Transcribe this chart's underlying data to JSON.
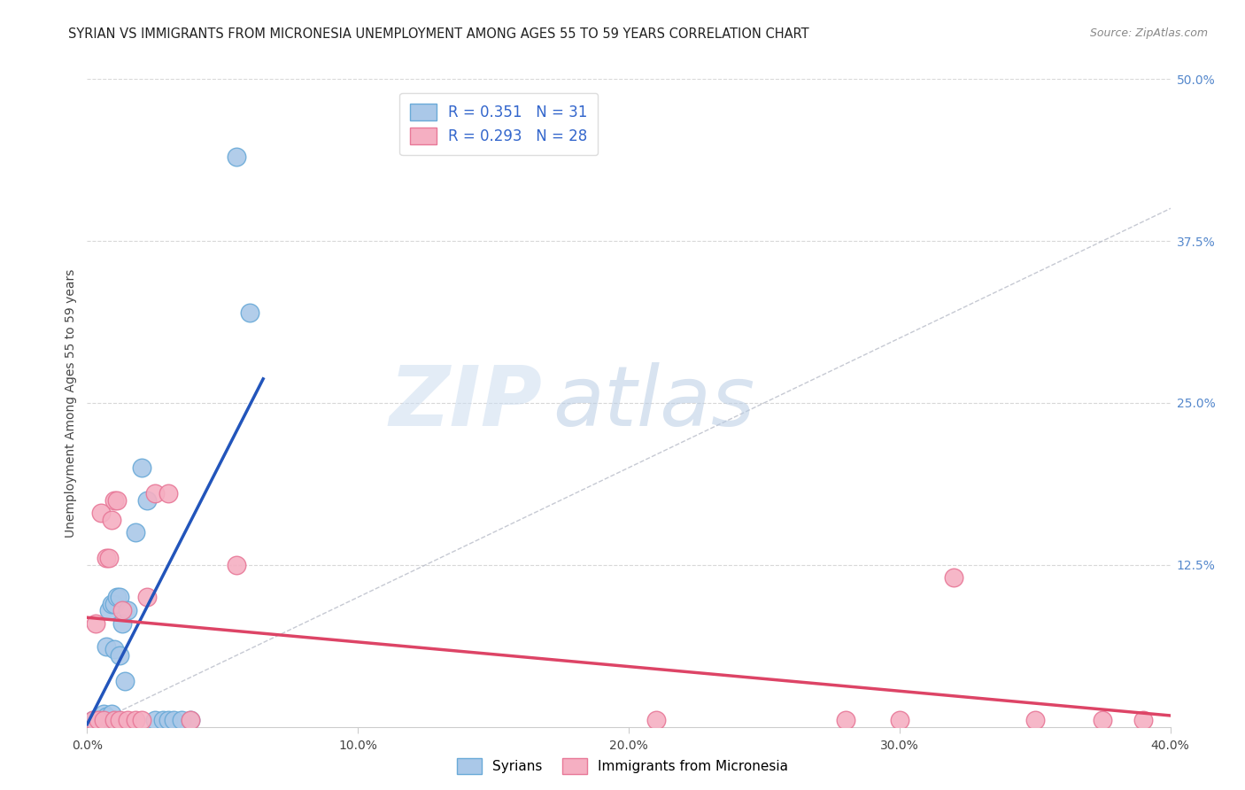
{
  "title": "SYRIAN VS IMMIGRANTS FROM MICRONESIA UNEMPLOYMENT AMONG AGES 55 TO 59 YEARS CORRELATION CHART",
  "source": "Source: ZipAtlas.com",
  "ylabel": "Unemployment Among Ages 55 to 59 years",
  "xlim": [
    0.0,
    0.4
  ],
  "ylim": [
    0.0,
    0.5
  ],
  "xticklabels": [
    "0.0%",
    "",
    "10.0%",
    "",
    "20.0%",
    "",
    "30.0%",
    "",
    "40.0%"
  ],
  "xtick_vals": [
    0.0,
    0.05,
    0.1,
    0.15,
    0.2,
    0.25,
    0.3,
    0.35,
    0.4
  ],
  "yticklabels_right": [
    "12.5%",
    "25.0%",
    "37.5%",
    "50.0%"
  ],
  "ytick_vals_right": [
    0.125,
    0.25,
    0.375,
    0.5
  ],
  "blue_R": 0.351,
  "blue_N": 31,
  "pink_R": 0.293,
  "pink_N": 28,
  "blue_color": "#aac8e8",
  "pink_color": "#f5afc2",
  "blue_edge": "#6aaad8",
  "pink_edge": "#e87898",
  "trend_blue": "#2255bb",
  "trend_pink": "#dd4466",
  "ref_line_color": "#b8bcc8",
  "grid_color": "#d8d8d8",
  "watermark_zip": "ZIP",
  "watermark_atlas": "atlas",
  "background_color": "#ffffff",
  "title_fontsize": 10.5,
  "axis_label_fontsize": 10,
  "tick_fontsize": 10,
  "blue_x": [
    0.002,
    0.003,
    0.004,
    0.004,
    0.005,
    0.006,
    0.006,
    0.007,
    0.007,
    0.008,
    0.009,
    0.009,
    0.01,
    0.01,
    0.011,
    0.012,
    0.012,
    0.013,
    0.014,
    0.015,
    0.018,
    0.02,
    0.022,
    0.025,
    0.028,
    0.03,
    0.032,
    0.035,
    0.038,
    0.055,
    0.06
  ],
  "blue_y": [
    0.005,
    0.005,
    0.005,
    0.005,
    0.005,
    0.005,
    0.01,
    0.008,
    0.062,
    0.09,
    0.01,
    0.095,
    0.06,
    0.095,
    0.1,
    0.055,
    0.1,
    0.08,
    0.035,
    0.09,
    0.15,
    0.2,
    0.175,
    0.005,
    0.005,
    0.005,
    0.005,
    0.005,
    0.005,
    0.44,
    0.32
  ],
  "pink_x": [
    0.002,
    0.003,
    0.004,
    0.005,
    0.006,
    0.007,
    0.008,
    0.009,
    0.01,
    0.01,
    0.011,
    0.012,
    0.013,
    0.015,
    0.018,
    0.02,
    0.022,
    0.025,
    0.03,
    0.038,
    0.055,
    0.21,
    0.28,
    0.3,
    0.32,
    0.35,
    0.375,
    0.39
  ],
  "pink_y": [
    0.005,
    0.08,
    0.005,
    0.165,
    0.005,
    0.13,
    0.13,
    0.16,
    0.005,
    0.175,
    0.175,
    0.005,
    0.09,
    0.005,
    0.005,
    0.005,
    0.1,
    0.18,
    0.18,
    0.005,
    0.125,
    0.005,
    0.005,
    0.005,
    0.115,
    0.005,
    0.005,
    0.005
  ]
}
